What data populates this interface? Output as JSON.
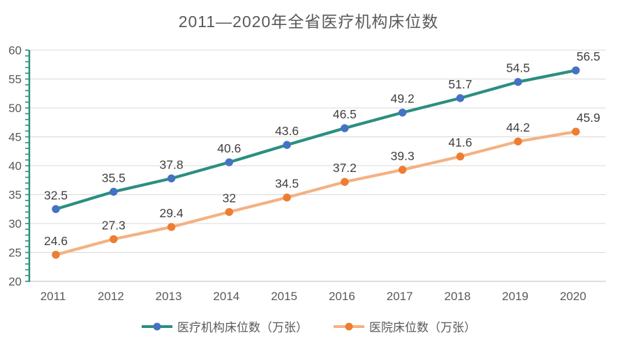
{
  "chart_data": {
    "type": "line",
    "title": "2011—2020年全省医疗机构床位数",
    "categories": [
      "2011",
      "2012",
      "2013",
      "2014",
      "2015",
      "2016",
      "2017",
      "2018",
      "2019",
      "2020"
    ],
    "series": [
      {
        "name": "医疗机构床位数（万张）",
        "values": [
          32.5,
          35.5,
          37.8,
          40.6,
          43.6,
          46.5,
          49.2,
          51.7,
          54.5,
          56.5
        ],
        "line_color": "#2b8f80",
        "marker_color": "#4472c4"
      },
      {
        "name": "医院床位数（万张）",
        "values": [
          24.6,
          27.3,
          29.4,
          32,
          34.5,
          37.2,
          39.3,
          41.6,
          44.2,
          45.9
        ],
        "line_color": "#f4b183",
        "marker_color": "#ed7d31"
      }
    ],
    "xlabel": "",
    "ylabel": "",
    "ylim": [
      20,
      60
    ],
    "y_tick_step": 5,
    "y_minor_tick_step": 1,
    "grid": "horizontal",
    "legend_position": "bottom",
    "data_labels": "above",
    "colors": {
      "grid": "#d9d9d9",
      "y_axis": "#2b8f80",
      "x_axis": "#c9c9c9",
      "tick_text": "#595959",
      "data_label_text": "#404040",
      "title_text": "#595959",
      "background": "#ffffff"
    }
  }
}
